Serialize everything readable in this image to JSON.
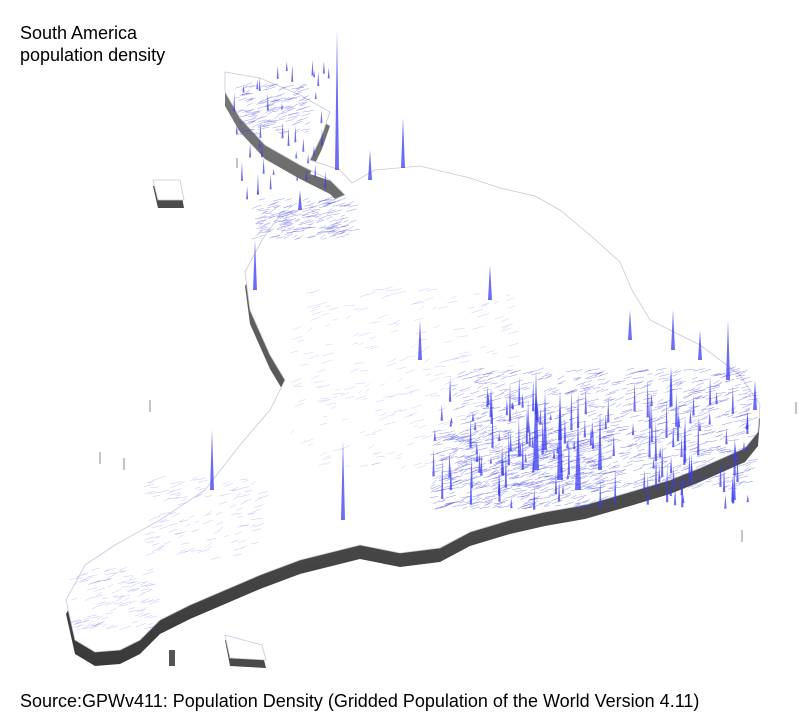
{
  "title_line1": "South America",
  "title_line2": "population density",
  "source": "Source:GPWv411: Population Density (Gridded Population of the World Version 4.11)",
  "colors": {
    "land": "#ffffff",
    "density_lines": "#3b3bf0",
    "extrusion_side": "#4a4a4a",
    "background": "#ffffff"
  }
}
